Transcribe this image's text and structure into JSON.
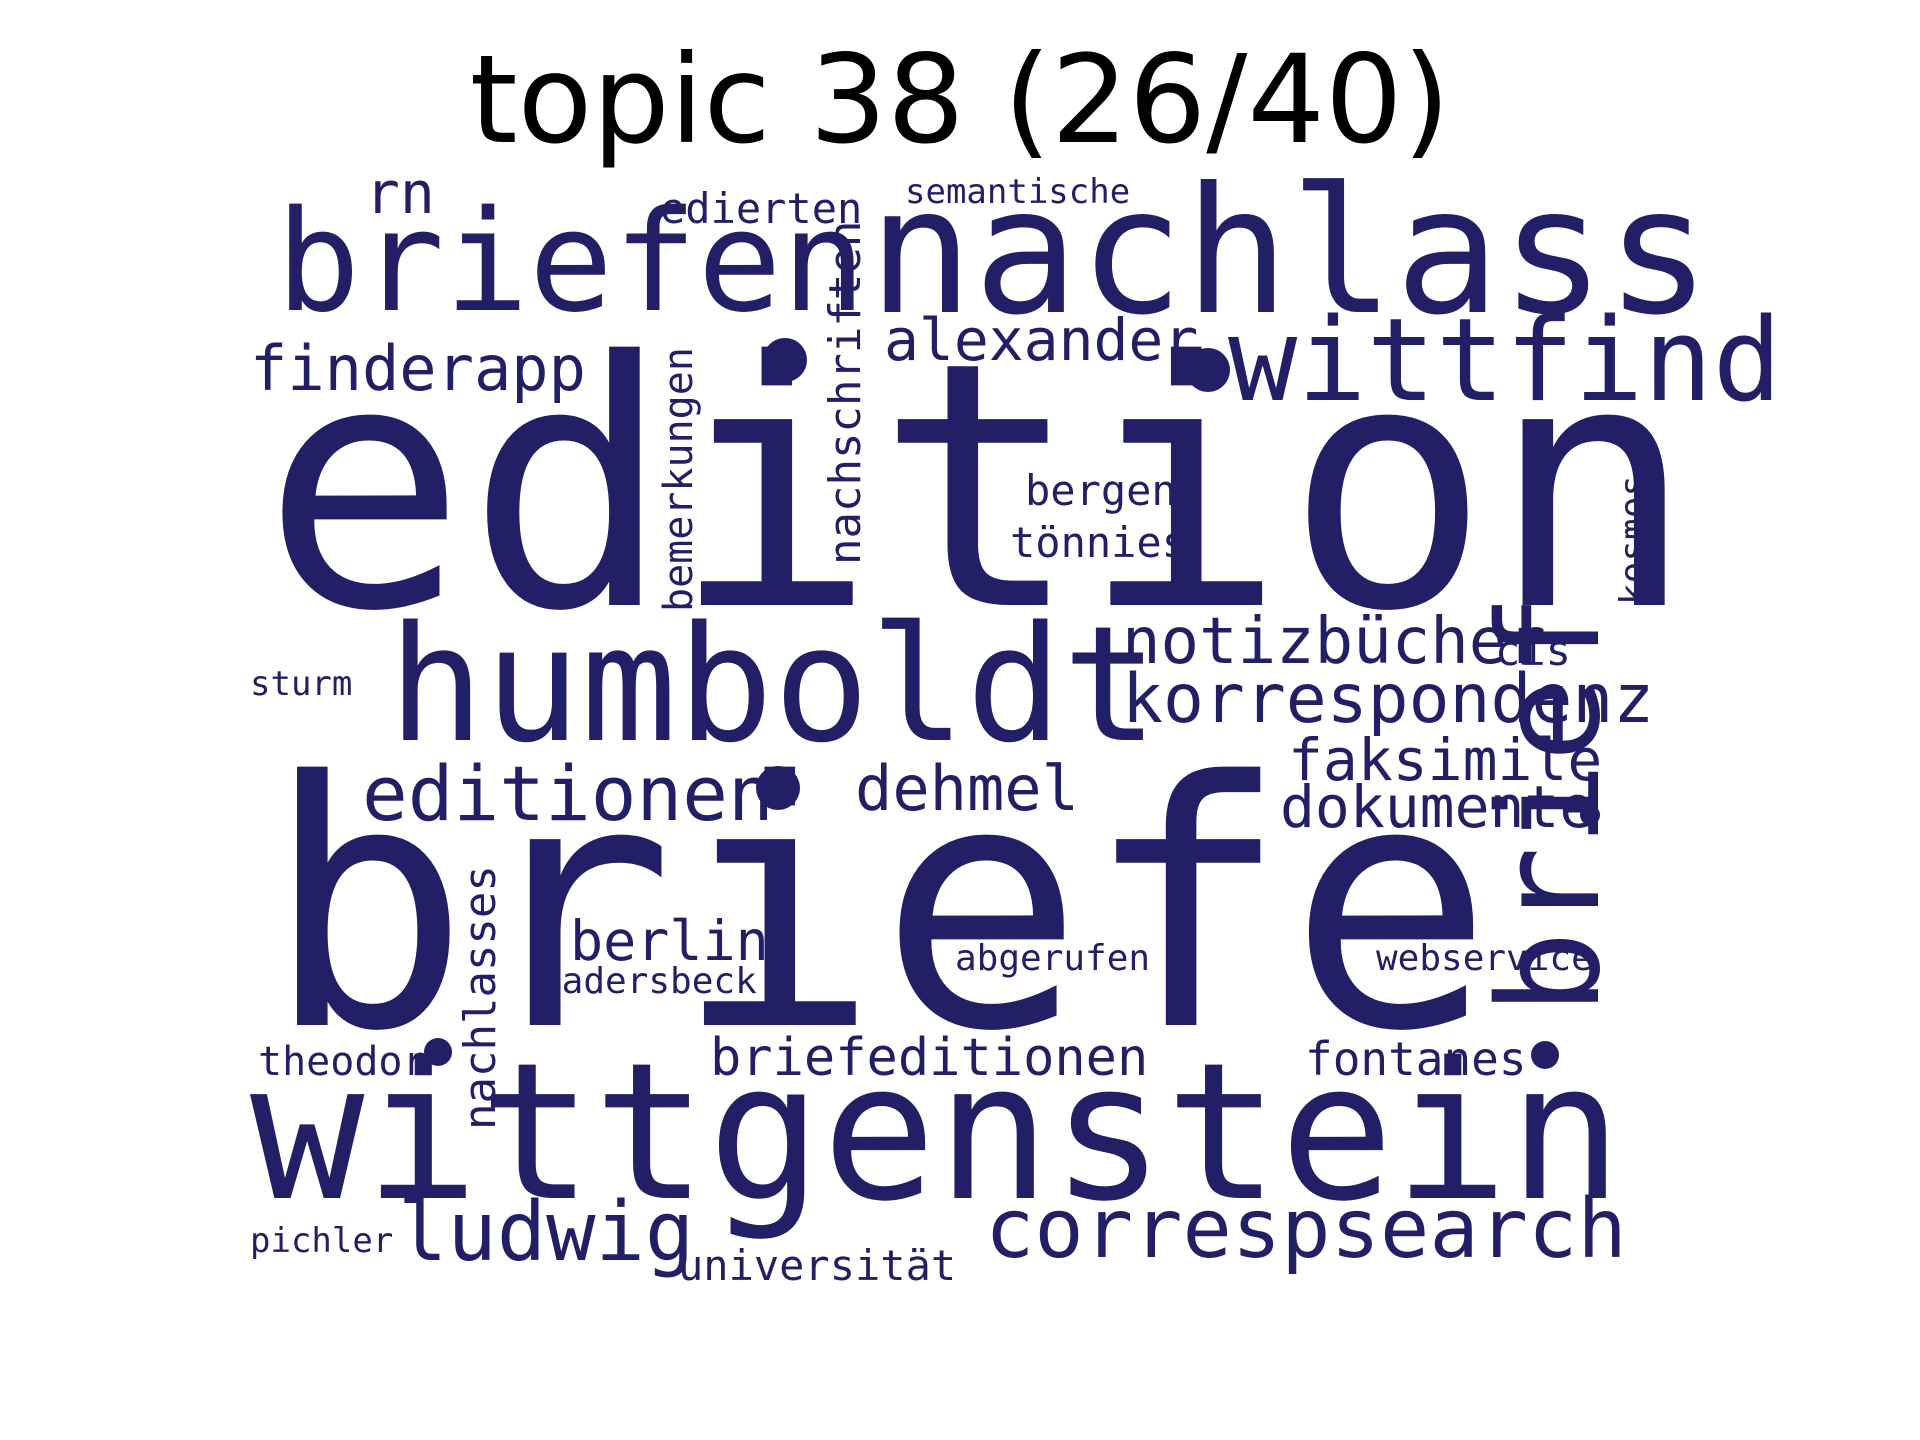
{
  "title": "topic 38 (26/40)",
  "word_color": "#221f66",
  "words": [
    {
      "text": "edition",
      "weight": 1.0
    },
    {
      "text": "briefe",
      "weight": 0.97
    },
    {
      "text": "wittgenstein",
      "weight": 0.55
    },
    {
      "text": "nachlass",
      "weight": 0.48
    },
    {
      "text": "humboldt",
      "weight": 0.46
    },
    {
      "text": "briefen",
      "weight": 0.4
    },
    {
      "text": "brief",
      "weight": 0.4
    },
    {
      "text": "wittfind",
      "weight": 0.34
    },
    {
      "text": "ludwig",
      "weight": 0.24
    },
    {
      "text": "correspsearch",
      "weight": 0.24
    },
    {
      "text": "editionen",
      "weight": 0.22
    },
    {
      "text": "korrespondenz",
      "weight": 0.2
    },
    {
      "text": "notizbücher",
      "weight": 0.19
    },
    {
      "text": "finderapp",
      "weight": 0.17
    },
    {
      "text": "alexander",
      "weight": 0.16
    },
    {
      "text": "dehmel",
      "weight": 0.17
    },
    {
      "text": "faksimile",
      "weight": 0.16
    },
    {
      "text": "dokumente",
      "weight": 0.16
    },
    {
      "text": "rn",
      "weight": 0.16
    },
    {
      "text": "berlin",
      "weight": 0.15
    },
    {
      "text": "briefeditionen",
      "weight": 0.15
    },
    {
      "text": "nachschriften",
      "weight": 0.13
    },
    {
      "text": "nachlasses",
      "weight": 0.13
    },
    {
      "text": "fontanes",
      "weight": 0.13
    },
    {
      "text": "bergen",
      "weight": 0.12
    },
    {
      "text": "tönnies",
      "weight": 0.12
    },
    {
      "text": "bemerkungen",
      "weight": 0.12
    },
    {
      "text": "edierten",
      "weight": 0.12
    },
    {
      "text": "universität",
      "weight": 0.12
    },
    {
      "text": "theodor",
      "weight": 0.12
    },
    {
      "text": "cis",
      "weight": 0.12
    },
    {
      "text": "hadersbeck",
      "weight": 0.11
    },
    {
      "text": "abgerufen",
      "weight": 0.11
    },
    {
      "text": "webservice",
      "weight": 0.11
    },
    {
      "text": "kosmos",
      "weight": 0.1
    },
    {
      "text": "semantische",
      "weight": 0.1
    },
    {
      "text": "sturm",
      "weight": 0.1
    },
    {
      "text": "pichler",
      "weight": 0.1
    }
  ],
  "dots": 6
}
